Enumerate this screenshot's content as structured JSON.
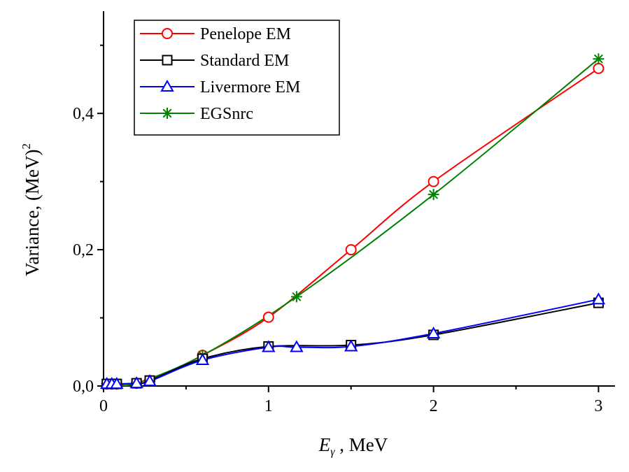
{
  "chart_data": {
    "type": "line",
    "title": "",
    "xlabel_main": "E",
    "xlabel_sub": "γ",
    "xlabel_rest": " , MeV",
    "ylabel_main": "Variance, (MeV)",
    "ylabel_sup": "2",
    "xlim": [
      0,
      3.1
    ],
    "ylim": [
      0,
      0.55
    ],
    "xticks": [
      0,
      1,
      2,
      3
    ],
    "xtick_labels": [
      "0",
      "1",
      "2",
      "3"
    ],
    "yticks": [
      0,
      0.2,
      0.4
    ],
    "ytick_labels": [
      "0,0",
      "0,2",
      "0,4"
    ],
    "legend_position": "top-left",
    "series": [
      {
        "name": "Penelope EM",
        "color": "#ff0000",
        "marker": "circle",
        "x": [
          0.02,
          0.05,
          0.08,
          0.2,
          0.28,
          0.6,
          1.0,
          1.5,
          2.0,
          3.0
        ],
        "y": [
          0.003,
          0.003,
          0.003,
          0.004,
          0.008,
          0.045,
          0.101,
          0.2,
          0.3,
          0.466
        ]
      },
      {
        "name": "Standard EM",
        "color": "#000000",
        "marker": "square",
        "x": [
          0.02,
          0.05,
          0.08,
          0.2,
          0.28,
          0.6,
          1.0,
          1.5,
          2.0,
          3.0
        ],
        "y": [
          0.003,
          0.003,
          0.003,
          0.004,
          0.008,
          0.04,
          0.058,
          0.06,
          0.075,
          0.122
        ]
      },
      {
        "name": "Livermore EM",
        "color": "#0000ff",
        "marker": "triangle",
        "x": [
          0.02,
          0.05,
          0.08,
          0.2,
          0.28,
          0.6,
          1.0,
          1.17,
          1.5,
          2.0,
          3.0
        ],
        "y": [
          0.003,
          0.003,
          0.003,
          0.004,
          0.007,
          0.038,
          0.057,
          0.057,
          0.058,
          0.077,
          0.127
        ]
      },
      {
        "name": "EGSnrc",
        "color": "#008000",
        "marker": "star",
        "x": [
          0.02,
          0.05,
          0.08,
          0.2,
          0.6,
          1.17,
          2.0,
          3.0
        ],
        "y": [
          0.003,
          0.003,
          0.003,
          0.004,
          0.045,
          0.131,
          0.281,
          0.48
        ]
      }
    ]
  }
}
